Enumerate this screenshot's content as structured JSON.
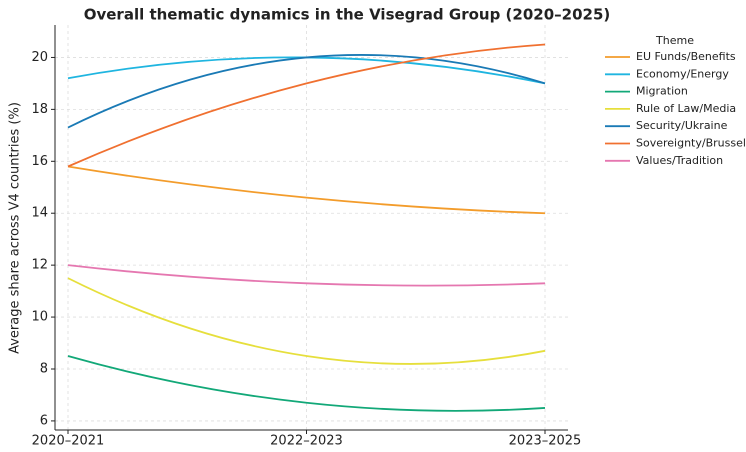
{
  "chart_data": {
    "type": "line",
    "title": "Overall thematic dynamics in the Visegrad Group (2020–2025)",
    "y_label": "Average share across V4 countries (%)",
    "categories": [
      "2020–2021",
      "2022–2023",
      "2023–2025"
    ],
    "ylim": [
      5.65,
      21.25
    ],
    "yticks": [
      6,
      8,
      10,
      12,
      14,
      16,
      18,
      20
    ],
    "grid": true,
    "legend_title": "Theme",
    "legend": "right",
    "series": [
      {
        "name": "EU Funds/Benefits",
        "color": "#f39c2b",
        "values": [
          15.8,
          14.6,
          14.0
        ]
      },
      {
        "name": "Economy/Energy",
        "color": "#1fb5e0",
        "values": [
          19.2,
          20.0,
          19.0
        ]
      },
      {
        "name": "Migration",
        "color": "#12a878",
        "values": [
          8.5,
          6.7,
          6.5
        ]
      },
      {
        "name": "Rule of Law/Media",
        "color": "#e6df3c",
        "values": [
          11.5,
          8.5,
          8.7
        ]
      },
      {
        "name": "Security/Ukraine",
        "color": "#1a7ab5",
        "values": [
          17.3,
          20.0,
          19.0
        ]
      },
      {
        "name": "Sovereignty/Brussels",
        "color": "#f07030",
        "values": [
          15.8,
          19.0,
          20.5
        ]
      },
      {
        "name": "Values/Tradition",
        "color": "#e577b0",
        "values": [
          12.0,
          11.3,
          11.3
        ]
      }
    ]
  }
}
